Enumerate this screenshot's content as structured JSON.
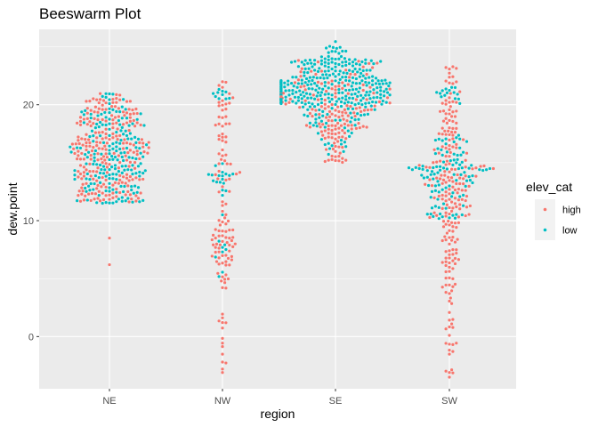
{
  "chart_data": {
    "type": "scatter",
    "subtype": "beeswarm",
    "title": "Beeswarm Plot",
    "xlabel": "region",
    "ylabel": "dew.point",
    "categories": [
      "NE",
      "NW",
      "SE",
      "SW"
    ],
    "ylim": [
      -4.5,
      26.5
    ],
    "yticks": [
      0,
      10,
      20
    ],
    "grid": true,
    "legend": {
      "title": "elev_cat",
      "position": "right",
      "entries": [
        {
          "label": "high",
          "color": "#F8766D"
        },
        {
          "label": "low",
          "color": "#00BFC4"
        }
      ]
    },
    "series": [
      {
        "name": "high",
        "color": "#F8766D",
        "distribution": {
          "NE": [
            [
              11.5,
              12.5,
              30
            ],
            [
              12.5,
              15,
              55
            ],
            [
              15,
              17.5,
              80
            ],
            [
              17.5,
              20.5,
              70
            ],
            [
              20.5,
              21,
              5
            ]
          ],
          "NW": [
            [
              -3.2,
              0,
              5
            ],
            [
              0,
              6,
              15
            ],
            [
              6,
              10,
              45
            ],
            [
              10,
              15,
              20
            ],
            [
              15,
              20,
              25
            ],
            [
              20,
              22.3,
              10
            ]
          ],
          "SE": [
            [
              15,
              17,
              20
            ],
            [
              17,
              19.5,
              60
            ],
            [
              19.5,
              22,
              70
            ],
            [
              22,
              24,
              20
            ]
          ],
          "SW": [
            [
              -3.5,
              0,
              10
            ],
            [
              0,
              5,
              20
            ],
            [
              5,
              10,
              45
            ],
            [
              10,
              15,
              80
            ],
            [
              15,
              20,
              50
            ],
            [
              20,
              23.5,
              20
            ]
          ]
        },
        "outliers": {
          "NE": [
            8.5,
            6.2
          ],
          "NW": [
            -2.2,
            -2.8,
            -3.1
          ],
          "SW": [
            -3.1,
            -3.5
          ]
        }
      },
      {
        "name": "low",
        "color": "#00BFC4",
        "distribution": {
          "NE": [
            [
              11.5,
              13.5,
              40
            ],
            [
              13.5,
              16.5,
              80
            ],
            [
              16.5,
              19.5,
              55
            ],
            [
              19.5,
              21,
              12
            ]
          ],
          "NW": [
            [
              5,
              10,
              8
            ],
            [
              12,
              15,
              18
            ],
            [
              20.5,
              21.5,
              10
            ]
          ],
          "SE": [
            [
              15,
              18,
              15
            ],
            [
              18,
              20,
              40
            ],
            [
              20,
              22,
              180
            ],
            [
              22,
              24,
              110
            ],
            [
              24,
              25.5,
              15
            ]
          ],
          "SW": [
            [
              10,
              13,
              30
            ],
            [
              13,
              15,
              45
            ],
            [
              15,
              17.5,
              25
            ],
            [
              20,
              21.5,
              15
            ]
          ]
        },
        "outliers": {
          "NW": [
            10.5
          ]
        }
      }
    ]
  }
}
